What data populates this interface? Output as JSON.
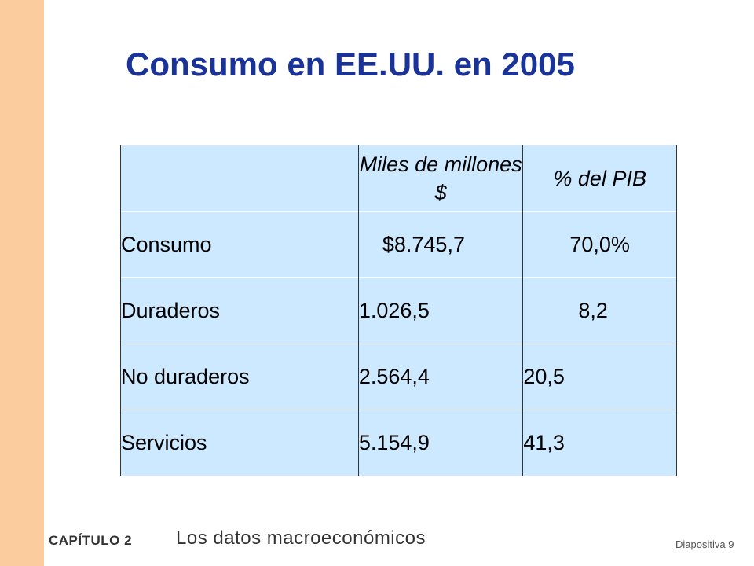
{
  "title": "Consumo en EE.UU. en 2005",
  "table": {
    "headers": [
      "",
      "Miles de millones $",
      "% del PIB"
    ],
    "rows": [
      {
        "label": "Consumo",
        "value": "$8.745,7",
        "pct": "70,0%"
      },
      {
        "label": "Duraderos",
        "value": "1.026,5",
        "pct": "8,2"
      },
      {
        "label": "No duraderos",
        "value": "2.564,4",
        "pct": "20,5"
      },
      {
        "label": "Servicios",
        "value": "5.154,9",
        "pct": "41,3"
      }
    ]
  },
  "footer": {
    "chapter": "CAPÍTULO 2",
    "subtitle": "Los datos macroeconómicos",
    "slide_label": "Diapositiva 9"
  },
  "colors": {
    "title": "#1a3399",
    "left_bar": "#fbcd9e",
    "table_background": "#cde9ff"
  }
}
